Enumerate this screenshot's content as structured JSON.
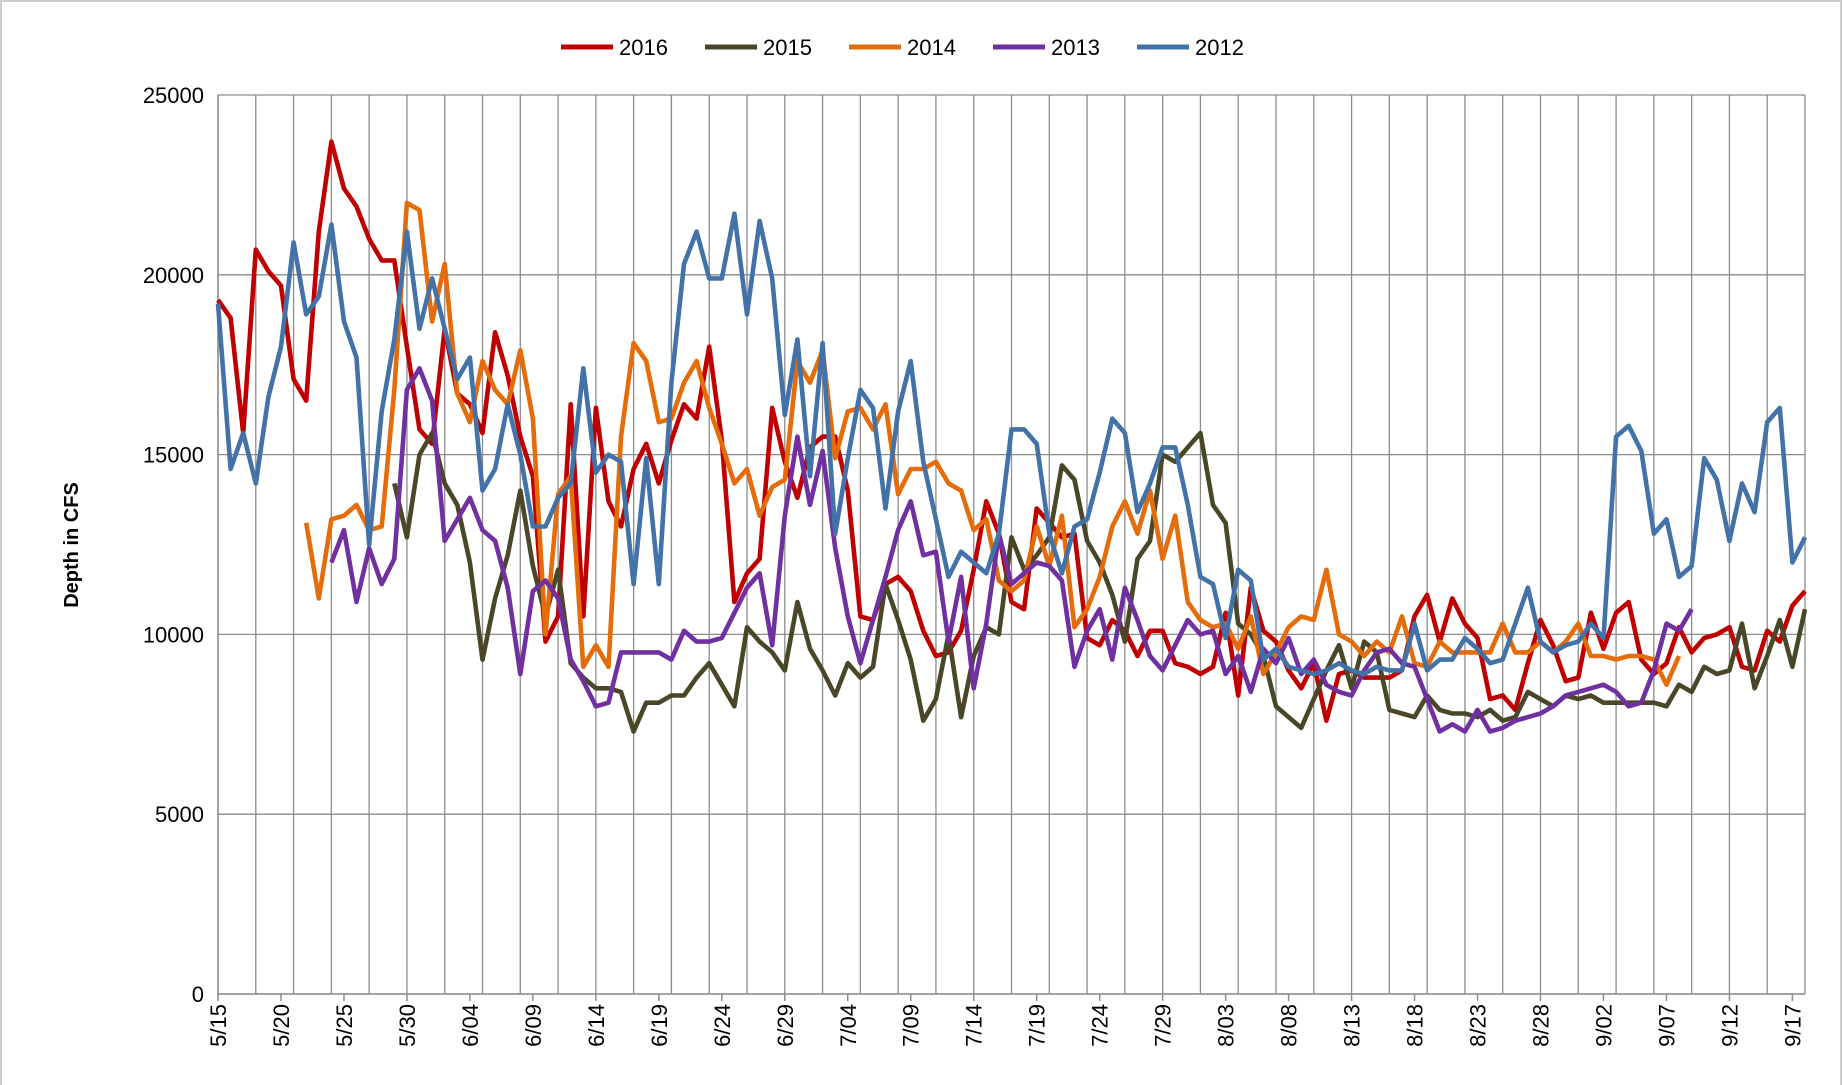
{
  "chart_data": {
    "type": "line",
    "y_label": "Depth in CFS",
    "categories": [
      "5/15",
      null,
      null,
      null,
      null,
      "5/20",
      null,
      null,
      null,
      null,
      "5/25",
      null,
      null,
      null,
      null,
      "5/30",
      null,
      null,
      null,
      null,
      "6/04",
      null,
      null,
      null,
      null,
      "6/09",
      null,
      null,
      null,
      null,
      "6/14",
      null,
      null,
      null,
      null,
      "6/19",
      null,
      null,
      null,
      null,
      "6/24",
      null,
      null,
      null,
      null,
      "6/29",
      null,
      null,
      null,
      null,
      "7/04",
      null,
      null,
      null,
      null,
      "7/09",
      null,
      null,
      null,
      null,
      "7/14",
      null,
      null,
      null,
      null,
      "7/19",
      null,
      null,
      null,
      null,
      "7/24",
      null,
      null,
      null,
      null,
      "7/29",
      null,
      null,
      null,
      null,
      "8/03",
      null,
      null,
      null,
      null,
      "8/08",
      null,
      null,
      null,
      null,
      "8/13",
      null,
      null,
      null,
      null,
      "8/18",
      null,
      null,
      null,
      null,
      "8/23",
      null,
      null,
      null,
      null,
      "8/28",
      null,
      null,
      null,
      null,
      "9/02",
      null,
      null,
      null,
      null,
      "9/07",
      null,
      null,
      null,
      null,
      "9/12",
      null,
      null,
      null,
      null,
      "9/17",
      null
    ],
    "series": [
      {
        "name": "2016",
        "color": "#c00000",
        "values": [
          19300,
          18800,
          15600,
          20700,
          20100,
          19700,
          17100,
          16500,
          21200,
          23700,
          22400,
          21900,
          21000,
          20400,
          20400,
          18000,
          15700,
          15300,
          18500,
          16700,
          16400,
          15600,
          18400,
          17200,
          15500,
          14400,
          9800,
          10500,
          16400,
          10500,
          16300,
          13700,
          13000,
          14600,
          15300,
          14200,
          15400,
          16400,
          16000,
          18000,
          15400,
          10900,
          11700,
          12100,
          16300,
          14800,
          13800,
          15200,
          15500,
          15500,
          14000,
          10500,
          10400,
          11400,
          11600,
          11200,
          10100,
          9400,
          9500,
          10100,
          11800,
          13700,
          12800,
          10900,
          10700,
          13500,
          13100,
          12700,
          12800,
          9900,
          9700,
          10400,
          10100,
          9400,
          10100,
          10100,
          9200,
          9100,
          8900,
          9100,
          10600,
          8300,
          11300,
          10100,
          9800,
          9000,
          8500,
          9200,
          7600,
          8900,
          9000,
          8800,
          8800,
          8800,
          9000,
          10500,
          11100,
          9800,
          11000,
          10300,
          9900,
          8200,
          8300,
          7900,
          9200,
          10400,
          9700,
          8700,
          8800,
          10600,
          9600,
          10600,
          10900,
          9300,
          8900,
          9200,
          10200,
          9500,
          9900,
          10000,
          10200,
          9100,
          9000,
          10100,
          9800,
          10800,
          11200
        ]
      },
      {
        "name": "2015",
        "color": "#4a4628",
        "values": [
          null,
          null,
          null,
          null,
          null,
          null,
          null,
          null,
          null,
          null,
          null,
          null,
          null,
          null,
          14200,
          12700,
          15000,
          15600,
          14200,
          13600,
          12000,
          9300,
          11000,
          12200,
          14000,
          11900,
          10500,
          11800,
          9200,
          8800,
          8500,
          8500,
          8400,
          7300,
          8100,
          8100,
          8300,
          8300,
          8800,
          9200,
          8600,
          8000,
          10200,
          9800,
          9500,
          9000,
          10900,
          9600,
          9000,
          8300,
          9200,
          8800,
          9100,
          11400,
          10400,
          9300,
          7600,
          8200,
          10000,
          7700,
          9400,
          10200,
          10000,
          12700,
          11800,
          12200,
          12700,
          14700,
          14300,
          12600,
          12000,
          11100,
          9800,
          12100,
          12600,
          15000,
          14800,
          15200,
          15600,
          13600,
          13100,
          10300,
          10000,
          9400,
          8000,
          7700,
          7400,
          8200,
          9000,
          9700,
          8500,
          9800,
          9500,
          7900,
          7800,
          7700,
          8300,
          7900,
          7800,
          7800,
          7700,
          7900,
          7600,
          7700,
          8400,
          8200,
          8000,
          8300,
          8200,
          8300,
          8100,
          8100,
          8100,
          8100,
          8100,
          8000,
          8600,
          8400,
          9100,
          8900,
          9000,
          10300,
          8500,
          9400,
          10400,
          9100,
          10700
        ]
      },
      {
        "name": "2014",
        "color": "#e46c0a",
        "values": [
          null,
          null,
          null,
          null,
          null,
          null,
          null,
          13100,
          11000,
          13200,
          13300,
          13600,
          12900,
          13000,
          16800,
          22000,
          21800,
          18700,
          20300,
          16700,
          15900,
          17600,
          16800,
          16400,
          17900,
          16000,
          10000,
          13900,
          14400,
          9100,
          9700,
          9100,
          15500,
          18100,
          17600,
          15900,
          16000,
          17000,
          17600,
          16300,
          15300,
          14200,
          14600,
          13300,
          14100,
          14300,
          17600,
          17000,
          17900,
          14900,
          16200,
          16300,
          15700,
          16400,
          13900,
          14600,
          14600,
          14800,
          14200,
          14000,
          12900,
          13200,
          11500,
          11200,
          11500,
          13000,
          11900,
          13300,
          10200,
          10700,
          11600,
          13000,
          13700,
          12800,
          14000,
          12100,
          13300,
          10900,
          10400,
          10200,
          10300,
          9600,
          10500,
          8900,
          9500,
          10200,
          10500,
          10400,
          11800,
          10000,
          9800,
          9400,
          9800,
          9500,
          10500,
          9200,
          9100,
          9800,
          9500,
          9500,
          9500,
          9500,
          10300,
          9500,
          9500,
          9800,
          9500,
          9800,
          10300,
          9400,
          9400,
          9300,
          9400,
          9400,
          9300,
          8600,
          9400,
          null,
          null,
          null,
          null,
          null,
          null,
          null,
          null,
          null,
          null
        ]
      },
      {
        "name": "2013",
        "color": "#7030a0",
        "values": [
          null,
          null,
          null,
          null,
          null,
          null,
          null,
          null,
          null,
          12000,
          12900,
          10900,
          12400,
          11400,
          12100,
          16800,
          17400,
          16500,
          12600,
          13200,
          13800,
          12900,
          12600,
          11300,
          8900,
          11200,
          11500,
          11000,
          9300,
          8700,
          8000,
          8100,
          9500,
          9500,
          9500,
          9500,
          9300,
          10100,
          9800,
          9800,
          9900,
          10600,
          11300,
          11700,
          9700,
          13300,
          15500,
          13600,
          15100,
          12400,
          10500,
          9200,
          10400,
          11600,
          12900,
          13700,
          12200,
          12300,
          9800,
          11600,
          8500,
          10300,
          12800,
          11400,
          11700,
          12000,
          11900,
          11500,
          9100,
          10100,
          10700,
          9300,
          11300,
          10400,
          9400,
          9000,
          9700,
          10400,
          10000,
          10100,
          8900,
          9400,
          8400,
          9600,
          9200,
          9900,
          8900,
          9300,
          8600,
          8400,
          8300,
          9000,
          9500,
          9600,
          9200,
          9100,
          8200,
          7300,
          7500,
          7300,
          7900,
          7300,
          7400,
          7600,
          7700,
          7800,
          8000,
          8300,
          8400,
          8500,
          8600,
          8400,
          8000,
          8100,
          9000,
          10300,
          10100,
          10700,
          null,
          null,
          null,
          null,
          null,
          null,
          null,
          null,
          null
        ]
      },
      {
        "name": "2012",
        "color": "#4272a8",
        "values": [
          19200,
          14600,
          15600,
          14200,
          16600,
          18000,
          20900,
          18900,
          19400,
          21400,
          18700,
          17700,
          12500,
          16200,
          18200,
          21200,
          18500,
          19900,
          18500,
          17100,
          17700,
          14000,
          14600,
          16400,
          15000,
          13000,
          13000,
          13800,
          14200,
          17400,
          14500,
          15000,
          14800,
          11400,
          14900,
          11400,
          17000,
          20300,
          21200,
          19900,
          19900,
          21700,
          18900,
          21500,
          19900,
          16100,
          18200,
          14400,
          18100,
          12800,
          14900,
          16800,
          16300,
          13500,
          16200,
          17600,
          14800,
          13200,
          11600,
          12300,
          12000,
          11700,
          12800,
          15700,
          15700,
          15300,
          12800,
          11700,
          13000,
          13200,
          14500,
          16000,
          15600,
          13400,
          14200,
          15200,
          15200,
          13600,
          11600,
          11400,
          9900,
          11800,
          11500,
          9300,
          9600,
          9100,
          9000,
          8900,
          9000,
          9200,
          9000,
          8900,
          9100,
          9000,
          9000,
          10300,
          9000,
          9300,
          9300,
          9900,
          9600,
          9200,
          9300,
          10300,
          11300,
          9800,
          9500,
          9700,
          9800,
          10300,
          9900,
          15500,
          15800,
          15100,
          12800,
          13200,
          11600,
          11900,
          14900,
          14300,
          12600,
          14200,
          13400,
          15900,
          16300,
          12000,
          12700
        ]
      }
    ],
    "ylim": [
      0,
      25000
    ],
    "yticks": [
      0,
      5000,
      10000,
      15000,
      20000,
      25000
    ],
    "grid": true,
    "legend": "top"
  }
}
